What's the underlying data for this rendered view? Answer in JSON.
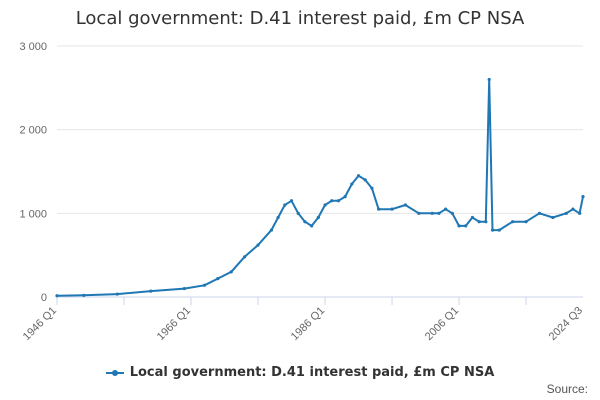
{
  "header": {
    "title": "Local government: D.41 interest paid, £m CP NSA"
  },
  "legend": {
    "label": "Local government: D.41 interest paid, £m CP NSA"
  },
  "footer": {
    "source_label": "Source:"
  },
  "colors": {
    "series": "#1f77b4",
    "grid": "#e6e6e6",
    "axis_text": "#666666"
  },
  "chart_data": {
    "type": "line",
    "title": "Local government: D.41 interest paid, £m CP NSA",
    "xlabel": "",
    "ylabel": "",
    "x_ticks": [
      "1946 Q1",
      "1966 Q1",
      "1986 Q1",
      "2006 Q1",
      "2024 Q3"
    ],
    "x_tick_values": [
      1946.0,
      1966.0,
      1986.0,
      2006.0,
      2024.5
    ],
    "y_ticks": [
      "0",
      "1 000",
      "2 000",
      "3 000"
    ],
    "y_tick_values": [
      0,
      1000,
      2000,
      3000
    ],
    "xlim": [
      1946.0,
      2024.5
    ],
    "ylim": [
      0,
      3000
    ],
    "grid": true,
    "legend_position": "bottom",
    "series": [
      {
        "name": "Local government: D.41 interest paid, £m CP NSA",
        "x": [
          1946,
          1950,
          1955,
          1960,
          1965,
          1968,
          1970,
          1972,
          1974,
          1976,
          1978,
          1979,
          1980,
          1981,
          1982,
          1983,
          1984,
          1985,
          1986,
          1987,
          1988,
          1989,
          1990,
          1991,
          1992,
          1993,
          1994,
          1996,
          1998,
          2000,
          2002,
          2003,
          2004,
          2005,
          2006,
          2007,
          2008,
          2009,
          2010,
          2010.5,
          2011,
          2012,
          2014,
          2016,
          2018,
          2020,
          2022,
          2023,
          2024,
          2024.5
        ],
        "values": [
          15,
          20,
          35,
          70,
          100,
          140,
          220,
          300,
          480,
          620,
          800,
          950,
          1100,
          1150,
          1000,
          900,
          850,
          950,
          1100,
          1150,
          1150,
          1200,
          1350,
          1450,
          1400,
          1300,
          1050,
          1050,
          1100,
          1000,
          1000,
          1000,
          1050,
          1000,
          850,
          850,
          950,
          900,
          900,
          2600,
          800,
          800,
          900,
          900,
          1000,
          950,
          1000,
          1050,
          1000,
          1200
        ]
      }
    ]
  }
}
